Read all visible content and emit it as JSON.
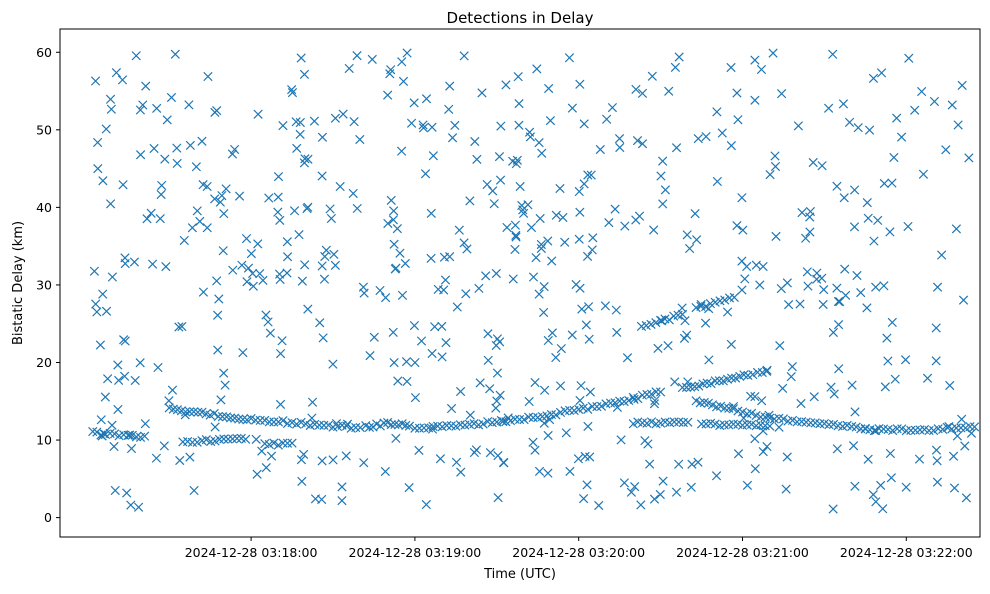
{
  "chart_data": {
    "type": "scatter",
    "title": "Detections in Delay",
    "xlabel": "Time (UTC)",
    "ylabel": "Bistatic Delay (km)",
    "xlim": [
      "2024-12-28 03:16:50",
      "2024-12-28 03:22:27"
    ],
    "ylim": [
      -2.5,
      63
    ],
    "xticks": [
      {
        "value": "2024-12-28 03:18:00",
        "label": "2024-12-28 03:18:00"
      },
      {
        "value": "2024-12-28 03:19:00",
        "label": "2024-12-28 03:19:00"
      },
      {
        "value": "2024-12-28 03:20:00",
        "label": "2024-12-28 03:20:00"
      },
      {
        "value": "2024-12-28 03:21:00",
        "label": "2024-12-28 03:21:00"
      },
      {
        "value": "2024-12-28 03:22:00",
        "label": "2024-12-28 03:22:00"
      }
    ],
    "yticks": [
      0,
      10,
      20,
      30,
      40,
      50,
      60
    ],
    "grid": false,
    "legend": "none",
    "marker": "x",
    "color": "#1f77b4",
    "tracks": [
      {
        "t": [
          "2024-12-28 03:17:02",
          "2024-12-28 03:17:05",
          "2024-12-28 03:17:10",
          "2024-12-28 03:17:15",
          "2024-12-28 03:17:21"
        ],
        "delay": [
          11.0,
          10.8,
          10.7,
          10.6,
          10.5
        ]
      },
      {
        "t": [
          "2024-12-28 03:17:30",
          "2024-12-28 03:17:36",
          "2024-12-28 03:17:42",
          "2024-12-28 03:17:48",
          "2024-12-28 03:17:54",
          "2024-12-28 03:18:00",
          "2024-12-28 03:18:10",
          "2024-12-28 03:18:20",
          "2024-12-28 03:18:30",
          "2024-12-28 03:18:40"
        ],
        "delay": [
          14.1,
          13.8,
          13.5,
          13.2,
          12.9,
          12.7,
          12.4,
          12.1,
          11.8,
          11.6
        ]
      },
      {
        "t": [
          "2024-12-28 03:17:35",
          "2024-12-28 03:17:42",
          "2024-12-28 03:17:50",
          "2024-12-28 03:17:58"
        ],
        "delay": [
          9.8,
          9.9,
          10.0,
          10.1
        ]
      },
      {
        "t": [
          "2024-12-28 03:18:05",
          "2024-12-28 03:18:10",
          "2024-12-28 03:18:15"
        ],
        "delay": [
          9.4,
          9.5,
          9.6
        ]
      },
      {
        "t": [
          "2024-12-28 03:18:42",
          "2024-12-28 03:18:46",
          "2024-12-28 03:18:50",
          "2024-12-28 03:18:54",
          "2024-12-28 03:18:58"
        ],
        "delay": [
          11.7,
          11.9,
          12.1,
          12.0,
          11.8
        ]
      },
      {
        "t": [
          "2024-12-28 03:19:00",
          "2024-12-28 03:19:15",
          "2024-12-28 03:19:30",
          "2024-12-28 03:19:45",
          "2024-12-28 03:20:00",
          "2024-12-28 03:20:15",
          "2024-12-28 03:20:30"
        ],
        "delay": [
          11.6,
          11.9,
          12.3,
          13.0,
          13.9,
          14.9,
          16.2
        ]
      },
      {
        "t": [
          "2024-12-28 03:20:20",
          "2024-12-28 03:20:30",
          "2024-12-28 03:20:40"
        ],
        "delay": [
          12.2,
          12.2,
          12.3
        ]
      },
      {
        "t": [
          "2024-12-28 03:20:23",
          "2024-12-28 03:20:30",
          "2024-12-28 03:20:38"
        ],
        "delay": [
          24.5,
          25.3,
          26.2
        ]
      },
      {
        "t": [
          "2024-12-28 03:20:43",
          "2024-12-28 03:20:50",
          "2024-12-28 03:20:57"
        ],
        "delay": [
          27.0,
          27.7,
          28.4
        ]
      },
      {
        "t": [
          "2024-12-28 03:20:38",
          "2024-12-28 03:20:50",
          "2024-12-28 03:21:02",
          "2024-12-28 03:21:09"
        ],
        "delay": [
          16.7,
          17.5,
          18.4,
          19.0
        ]
      },
      {
        "t": [
          "2024-12-28 03:20:43",
          "2024-12-28 03:20:55",
          "2024-12-28 03:21:05",
          "2024-12-28 03:21:15",
          "2024-12-28 03:21:30",
          "2024-12-28 03:21:45"
        ],
        "delay": [
          15.0,
          14.0,
          13.2,
          12.6,
          12.0,
          11.5
        ]
      },
      {
        "t": [
          "2024-12-28 03:20:45",
          "2024-12-28 03:21:00",
          "2024-12-28 03:21:10"
        ],
        "delay": [
          12.1,
          11.9,
          11.8
        ]
      },
      {
        "t": [
          "2024-12-28 03:21:45",
          "2024-12-28 03:21:55",
          "2024-12-28 03:22:05",
          "2024-12-28 03:22:15",
          "2024-12-28 03:22:25"
        ],
        "delay": [
          11.4,
          11.3,
          11.3,
          11.5,
          11.7
        ]
      }
    ],
    "noise": {
      "x_range": [
        "2024-12-28 03:17:02",
        "2024-12-28 03:22:25"
      ],
      "y_range": [
        1,
        60
      ],
      "count": 620
    }
  }
}
